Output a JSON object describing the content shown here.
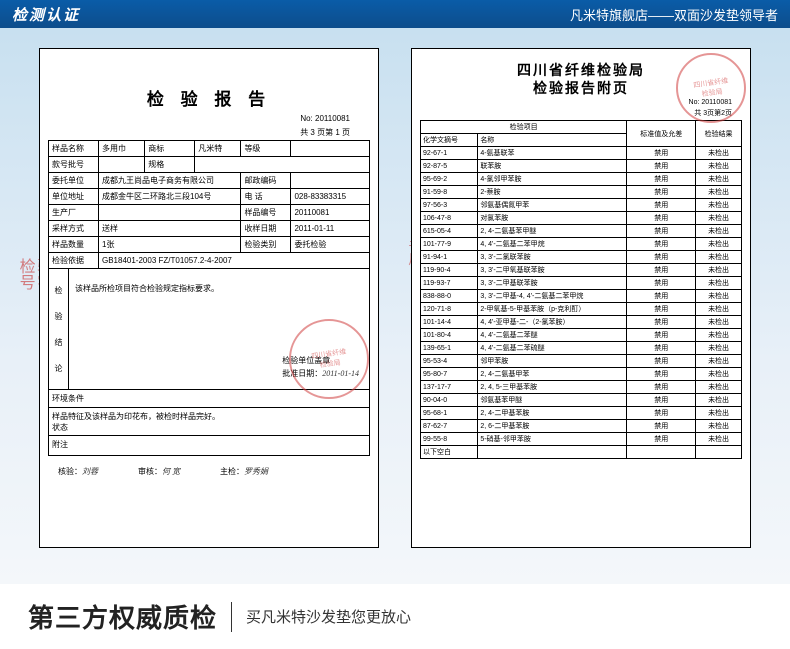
{
  "header": {
    "left": "检测认证",
    "right": "凡米特旗舰店——双面沙发垫领导者"
  },
  "doc1": {
    "title": "检 验 报 告",
    "no": "No: 20110081",
    "pages": "共 3 页第 1 页",
    "rows": [
      [
        "样品名称",
        "多用巾",
        "商标",
        "凡米特",
        "等级",
        ""
      ],
      [
        "款号批号",
        "",
        "规格",
        "",
        "",
        ""
      ],
      [
        "委托单位",
        "成都九王尚品电子商务有限公司",
        "邮政编码",
        ""
      ],
      [
        "单位地址",
        "成都金牛区二环路北三段104号",
        "电  话",
        "028-83383315"
      ],
      [
        "生产厂",
        "",
        "样品编号",
        "20110081"
      ],
      [
        "采样方式",
        "送样",
        "收样日期",
        "2011-01-11"
      ],
      [
        "样品数量",
        "1张",
        "检验类别",
        "委托检验"
      ],
      [
        "检验依据",
        "GB18401-2003  FZ/T01057.2-4-2007",
        "",
        ""
      ]
    ],
    "conclusion_label": "检验结论",
    "conclusion_text": "该样品所检项目符合检验规定指标要求。",
    "sig_unit": "检验单位盖章",
    "sig_date_label": "批准日期：",
    "sig_date": "2011-01-14",
    "env_label": "环境条件",
    "sample_label": "样品特征及状态",
    "sample_text": "该样品为印花布，被检时样品完好。",
    "attach_label": "附注",
    "footer": [
      "核验：",
      "刘蓉",
      "审核：",
      "何 宽",
      "主检：",
      "罗秀娟"
    ]
  },
  "doc2": {
    "title1": "四川省纤维检验局",
    "title2": "检验报告附页",
    "no": "No: 20110081",
    "pages": "共  3页第2页",
    "header_row": [
      "检验项目",
      "标准值及允差",
      "检验结果"
    ],
    "sub_header": [
      "化学文摘号",
      "名称"
    ],
    "rows": [
      [
        "92-67-1",
        "4-氨基联苯",
        "禁用",
        "未检出"
      ],
      [
        "92-87-5",
        "联苯胺",
        "禁用",
        "未检出"
      ],
      [
        "95-69-2",
        "4-氯邻甲苯胺",
        "禁用",
        "未检出"
      ],
      [
        "91-59-8",
        "2-萘胺",
        "禁用",
        "未检出"
      ],
      [
        "97-56-3",
        "邻氨基偶氮甲苯",
        "禁用",
        "未检出"
      ],
      [
        "106-47-8",
        "对氯苯胺",
        "禁用",
        "未检出"
      ],
      [
        "615-05-4",
        "2, 4-二氨基苯甲醚",
        "禁用",
        "未检出"
      ],
      [
        "101-77-9",
        "4, 4'-二氨基二苯甲烷",
        "禁用",
        "未检出"
      ],
      [
        "91-94-1",
        "3, 3'-二氯联苯胺",
        "禁用",
        "未检出"
      ],
      [
        "119-90-4",
        "3, 3'-二甲氧基联苯胺",
        "禁用",
        "未检出"
      ],
      [
        "119-93-7",
        "3, 3'-二甲基联苯胺",
        "禁用",
        "未检出"
      ],
      [
        "838-88-0",
        "3, 3'-二甲基-4, 4'-二氨基二苯甲烷",
        "禁用",
        "未检出"
      ],
      [
        "120-71-8",
        "2-甲氧基-5-甲基苯胺（p-克利酊）",
        "禁用",
        "未检出"
      ],
      [
        "101-14-4",
        "4, 4'-亚甲基-二-（2-氯苯胺）",
        "禁用",
        "未检出"
      ],
      [
        "101-80-4",
        "4, 4'-二氨基二苯醚",
        "禁用",
        "未检出"
      ],
      [
        "139-65-1",
        "4, 4'-二氨基二苯硫醚",
        "禁用",
        "未检出"
      ],
      [
        "95-53-4",
        "邻甲苯胺",
        "禁用",
        "未检出"
      ],
      [
        "95-80-7",
        "2, 4-二氨基甲苯",
        "禁用",
        "未检出"
      ],
      [
        "137-17-7",
        "2, 4, 5-三甲基苯胺",
        "禁用",
        "未检出"
      ],
      [
        "90-04-0",
        "邻氨基苯甲醚",
        "禁用",
        "未检出"
      ],
      [
        "95-68-1",
        "2, 4-二甲基苯胺",
        "禁用",
        "未检出"
      ],
      [
        "87-62-7",
        "2, 6-二甲基苯胺",
        "禁用",
        "未检出"
      ],
      [
        "99-55-8",
        "5-硝基-邻甲苯胺",
        "禁用",
        "未检出"
      ]
    ],
    "blank_label": "以下空白"
  },
  "footer": {
    "main": "第三方权威质检",
    "sub": "买凡米特沙发垫您更放心"
  },
  "colors": {
    "header_bg": "#0d4d8c",
    "stamp": "#d04040"
  }
}
